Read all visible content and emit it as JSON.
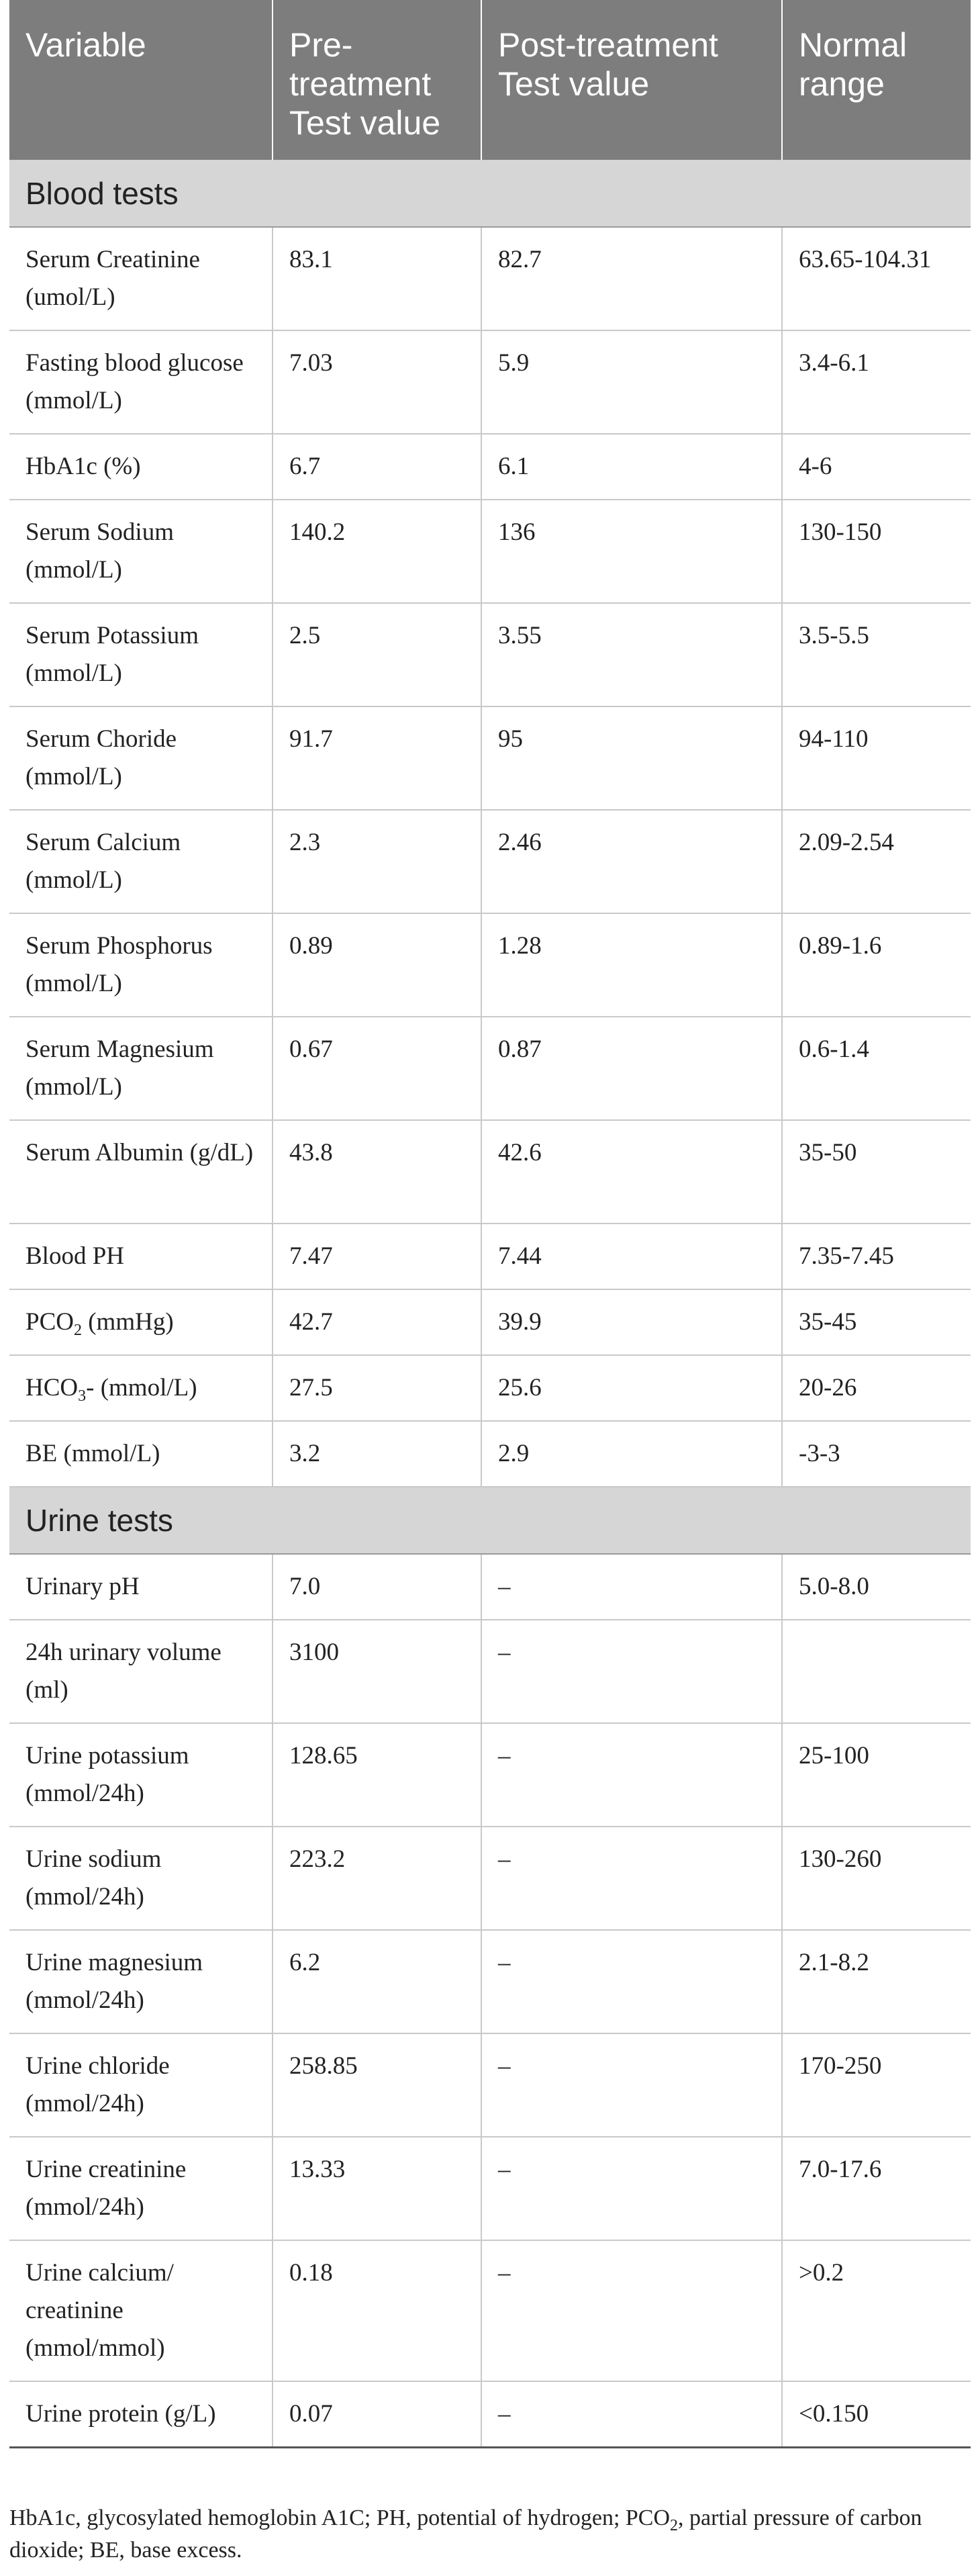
{
  "header": {
    "col1": "Variable",
    "col2": "Pre-treatment Test value",
    "col3": "Post-treatment Test value",
    "col4": "Normal range"
  },
  "blood": {
    "title": "Blood tests",
    "rows": [
      {
        "variable": "Serum Creatinine (umol/L)",
        "pre": "83.1",
        "post": "82.7",
        "range": "63.65-104.31"
      },
      {
        "variable": "Fasting blood glucose (mmol/L)",
        "pre": "7.03",
        "post": "5.9",
        "range": "3.4-6.1"
      },
      {
        "variable": "HbA1c (%)",
        "pre": "6.7",
        "post": "6.1",
        "range": "4-6"
      },
      {
        "variable": "Serum Sodium (mmol/L)",
        "pre": "140.2",
        "post": "136",
        "range": "130-150"
      },
      {
        "variable": "Serum Potassium (mmol/L)",
        "pre": "2.5",
        "post": "3.55",
        "range": "3.5-5.5"
      },
      {
        "variable": "Serum Choride (mmol/L)",
        "pre": "91.7",
        "post": "95",
        "range": "94-110"
      },
      {
        "variable": "Serum Calcium (mmol/L)",
        "pre": "2.3",
        "post": "2.46",
        "range": "2.09-2.54"
      },
      {
        "variable": "Serum Phosphorus (mmol/L)",
        "pre": "0.89",
        "post": "1.28",
        "range": "0.89-1.6"
      },
      {
        "variable": "Serum Magnesium (mmol/L)",
        "pre": "0.67",
        "post": "0.87",
        "range": "0.6-1.4"
      },
      {
        "variable": "Serum Albumin (g/dL)",
        "pre": "43.8",
        "post": "42.6",
        "range": "35-50"
      },
      {
        "variable": "Blood PH",
        "pre": "7.47",
        "post": "7.44",
        "range": "7.35-7.45"
      },
      {
        "variable_prefix": "PCO",
        "variable_sub": "2",
        "variable_suffix": " (mmHg)",
        "pre": "42.7",
        "post": "39.9",
        "range": "35-45"
      },
      {
        "variable_prefix": "HCO",
        "variable_sub": "3",
        "variable_suffix": "- (mmol/L)",
        "pre": "27.5",
        "post": "25.6",
        "range": "20-26"
      },
      {
        "variable": "BE (mmol/L)",
        "pre": "3.2",
        "post": "2.9",
        "range": "-3-3"
      }
    ]
  },
  "urine": {
    "title": "Urine tests",
    "rows": [
      {
        "variable": "Urinary pH",
        "pre": "7.0",
        "post": "–",
        "range": "5.0-8.0"
      },
      {
        "variable": "24h urinary volume (ml)",
        "pre": "3100",
        "post": "–",
        "range": ""
      },
      {
        "variable": "Urine potassium (mmol/24h)",
        "pre": "128.65",
        "post": "–",
        "range": "25-100"
      },
      {
        "variable": "Urine sodium (mmol/24h)",
        "pre": "223.2",
        "post": "–",
        "range": "130-260"
      },
      {
        "variable": "Urine magnesium (mmol/24h)",
        "pre": "6.2",
        "post": "–",
        "range": "2.1-8.2"
      },
      {
        "variable": "Urine chloride (mmol/24h)",
        "pre": "258.85",
        "post": "–",
        "range": "170-250"
      },
      {
        "variable": "Urine creatinine (mmol/24h)",
        "pre": "13.33",
        "post": "–",
        "range": "7.0-17.6"
      },
      {
        "variable": "Urine calcium/ creatinine (mmol/mmol)",
        "pre": "0.18",
        "post": "–",
        "range": ">0.2"
      },
      {
        "variable": "Urine protein (g/L)",
        "pre": "0.07",
        "post": "–",
        "range": "<0.150"
      }
    ]
  },
  "footnote": {
    "part1": "HbA1c, glycosylated hemoglobin A1C; PH, potential of hydrogen; PCO",
    "sub": "2",
    "part2": ", partial pressure of carbon dioxide; BE, base excess."
  }
}
